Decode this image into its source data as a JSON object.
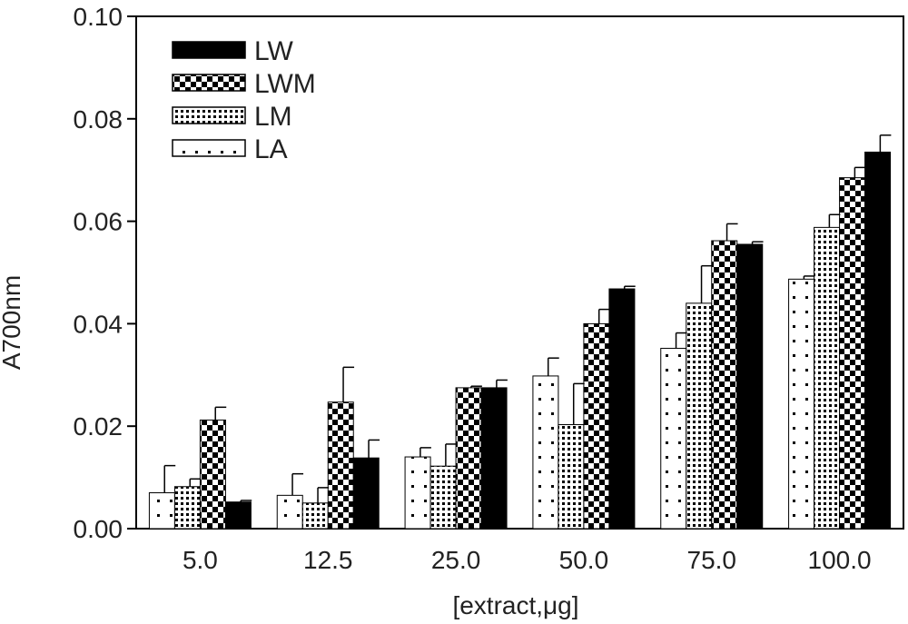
{
  "chart_data": {
    "type": "bar",
    "xlabel": "[extract,μg]",
    "ylabel": "A700nm",
    "ylim": [
      0,
      0.1
    ],
    "yticks": [
      "0.00",
      "0.02",
      "0.04",
      "0.06",
      "0.08",
      "0.10"
    ],
    "categories": [
      "5.0",
      "12.5",
      "25.0",
      "50.0",
      "75.0",
      "100.0"
    ],
    "legend_position": "top-left",
    "series": [
      {
        "name": "LA",
        "pattern": "sparse-dots",
        "values": [
          0.007,
          0.0065,
          0.014,
          0.0298,
          0.0352,
          0.0487
        ],
        "errors": [
          0.0053,
          0.0042,
          0.0018,
          0.0035,
          0.003,
          0.0006
        ]
      },
      {
        "name": "LM",
        "pattern": "dense-dots",
        "values": [
          0.0082,
          0.005,
          0.0122,
          0.0203,
          0.044,
          0.0588
        ],
        "errors": [
          0.0015,
          0.003,
          0.0043,
          0.008,
          0.0073,
          0.0025
        ]
      },
      {
        "name": "LWM",
        "pattern": "checker",
        "values": [
          0.0212,
          0.0247,
          0.0275,
          0.04,
          0.0562,
          0.0685
        ],
        "errors": [
          0.0025,
          0.0068,
          0.0003,
          0.0028,
          0.0033,
          0.002
        ]
      },
      {
        "name": "LW",
        "pattern": "solid",
        "values": [
          0.0052,
          0.0138,
          0.0275,
          0.0468,
          0.0555,
          0.0735
        ],
        "errors": [
          0.0003,
          0.0035,
          0.0015,
          0.0005,
          0.0005,
          0.0033
        ]
      }
    ],
    "legend": [
      {
        "name": "LW",
        "pattern": "solid"
      },
      {
        "name": "LWM",
        "pattern": "checker"
      },
      {
        "name": "LM",
        "pattern": "dense-dots"
      },
      {
        "name": "LA",
        "pattern": "sparse-dots"
      }
    ],
    "colors": {
      "bar": "#000000",
      "background": "#ffffff",
      "text": "#222222"
    }
  }
}
